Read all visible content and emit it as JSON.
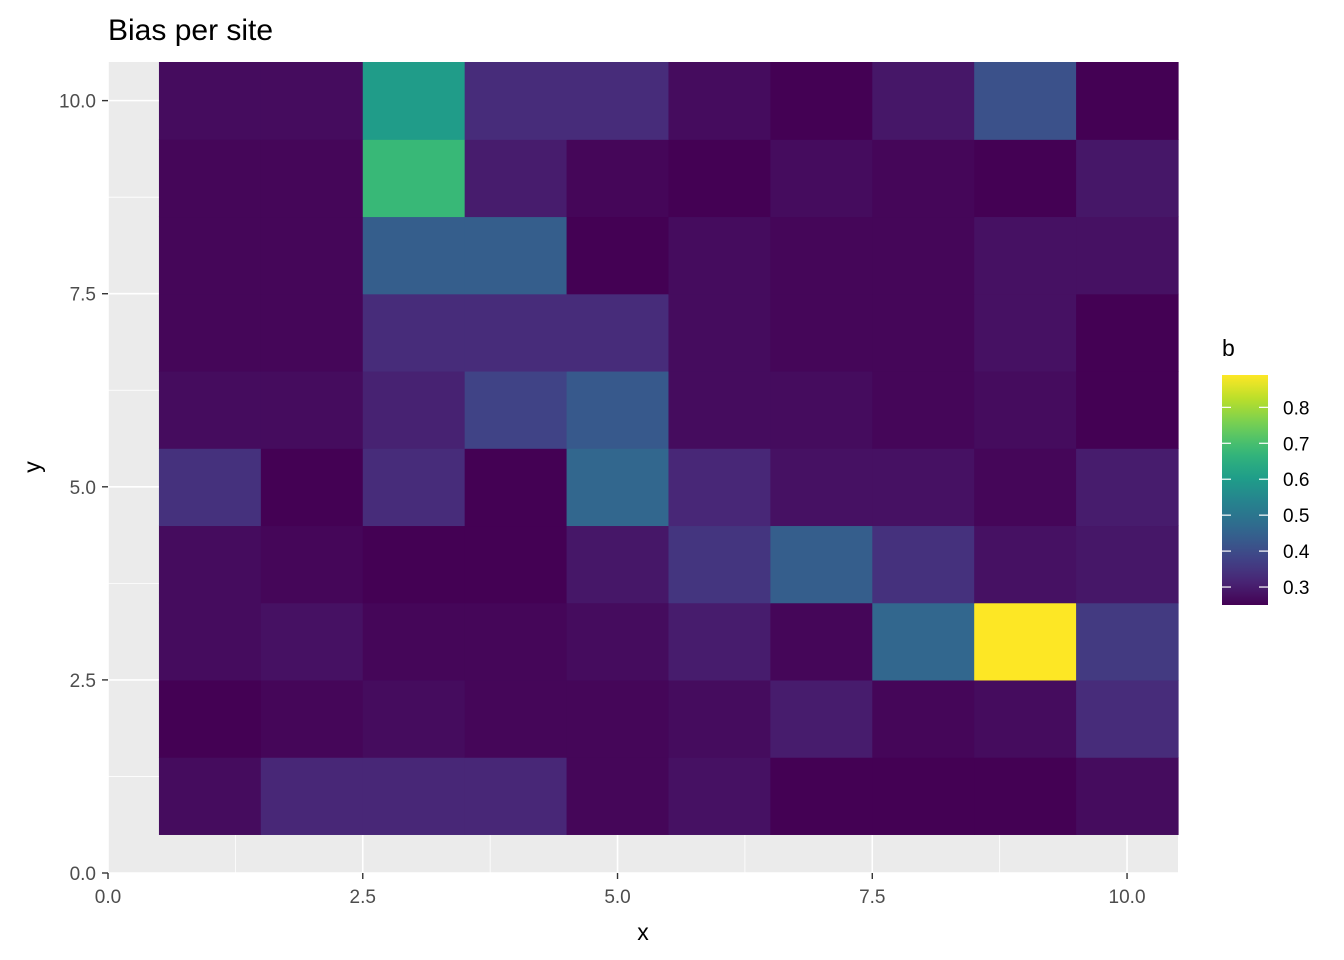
{
  "chart_data": {
    "type": "heatmap",
    "title": "Bias per site",
    "xlabel": "x",
    "ylabel": "y",
    "xlim": [
      0,
      10.5
    ],
    "ylim": [
      0,
      10.5
    ],
    "x_ticks": [
      "0.0",
      "2.5",
      "5.0",
      "7.5",
      "10.0"
    ],
    "y_ticks": [
      "0.0",
      "2.5",
      "5.0",
      "7.5",
      "10.0"
    ],
    "x": [
      1,
      2,
      3,
      4,
      5,
      6,
      7,
      8,
      9,
      10
    ],
    "y": [
      1,
      2,
      3,
      4,
      5,
      6,
      7,
      8,
      9,
      10
    ],
    "grid": true,
    "legend": {
      "title": "b",
      "placement": "right",
      "ticks": [
        "0.3",
        "0.4",
        "0.5",
        "0.6",
        "0.7",
        "0.8"
      ],
      "min": 0.25,
      "max": 0.89
    },
    "colormap": "viridis",
    "values": [
      [
        0.27,
        0.32,
        0.32,
        0.32,
        0.26,
        0.28,
        0.25,
        0.25,
        0.25,
        0.27
      ],
      [
        0.25,
        0.26,
        0.27,
        0.26,
        0.26,
        0.27,
        0.3,
        0.26,
        0.27,
        0.33
      ],
      [
        0.27,
        0.28,
        0.26,
        0.26,
        0.27,
        0.3,
        0.26,
        0.46,
        0.89,
        0.36
      ],
      [
        0.27,
        0.26,
        0.25,
        0.25,
        0.29,
        0.35,
        0.44,
        0.34,
        0.28,
        0.29
      ],
      [
        0.34,
        0.25,
        0.33,
        0.25,
        0.46,
        0.32,
        0.28,
        0.28,
        0.26,
        0.3
      ],
      [
        0.27,
        0.27,
        0.31,
        0.38,
        0.43,
        0.27,
        0.27,
        0.26,
        0.27,
        0.25
      ],
      [
        0.26,
        0.26,
        0.33,
        0.33,
        0.33,
        0.27,
        0.26,
        0.26,
        0.28,
        0.25
      ],
      [
        0.26,
        0.26,
        0.44,
        0.44,
        0.25,
        0.27,
        0.26,
        0.26,
        0.28,
        0.28
      ],
      [
        0.26,
        0.26,
        0.68,
        0.3,
        0.26,
        0.25,
        0.27,
        0.26,
        0.25,
        0.29
      ],
      [
        0.27,
        0.27,
        0.6,
        0.33,
        0.33,
        0.27,
        0.25,
        0.29,
        0.41,
        0.25
      ]
    ]
  }
}
